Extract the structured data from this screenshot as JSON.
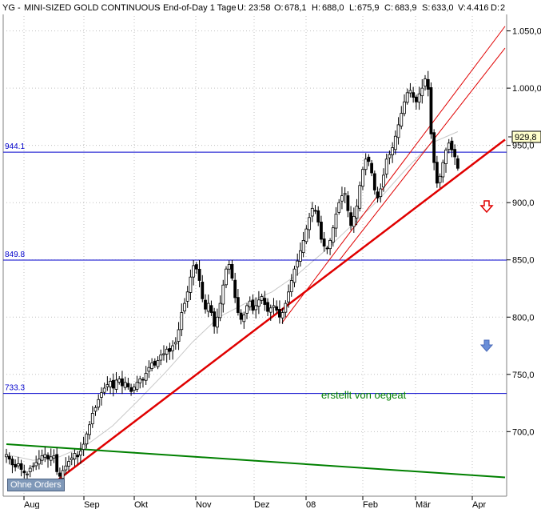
{
  "status_bar": {
    "symbol": "YG",
    "name": "MINI-SIZED GOLD CONTINUOUS",
    "period": "End-of-Day 1 Tage",
    "u_label": "U:",
    "u_value": "23:58",
    "o_label": "O:",
    "o_value": "678,1",
    "h_label": "H:",
    "h_value": "688,0",
    "l_label": "L:",
    "l_value": "675,9",
    "c_label": "C:",
    "c_value": "683,9",
    "s_label": "S:",
    "s_value": "633,0",
    "v_label": "V:",
    "v_value": "4.416",
    "d_label": "D:",
    "d_value": "2"
  },
  "last_price_label": "929,8",
  "annotation": "erstellt von oegeat",
  "ohne_orders_label": "Ohne Orders",
  "colors": {
    "background": "#ffffff",
    "candles": "#000000",
    "hlines": "#0000cc",
    "trend_red": "#e00000",
    "trend_green": "#008000",
    "ma": "#c8c8c8",
    "annotation": "#008000",
    "axis_bg": "#ffffff",
    "last_price_bg": "#ffffcc",
    "sell_arrow": "#e00000",
    "buy_arrow": "#6a8ed8"
  },
  "chart_data": {
    "type": "candlestick",
    "y_axis": {
      "ticks": [
        700,
        750,
        800,
        850,
        900,
        950,
        1000,
        1050
      ],
      "tick_labels": [
        "700,0",
        "750,0",
        "800,0",
        "850,0",
        "900,0",
        "950,0",
        "1.000,0",
        "1.050,0"
      ],
      "range": [
        645,
        1063
      ]
    },
    "x_axis": {
      "tick_labels": [
        "Aug",
        "Sep",
        "Okt",
        "Nov",
        "Dez",
        "08",
        "Feb",
        "Mär",
        "Apr"
      ],
      "range_index": [
        0,
        190
      ]
    },
    "horizontal_lines": [
      {
        "label": "944.1",
        "value": 944.1
      },
      {
        "label": "849.8",
        "value": 849.8
      },
      {
        "label": "733.3",
        "value": 733.3
      }
    ],
    "trendlines": [
      {
        "style": "thick-red",
        "x": [
          18,
          190
        ],
        "y": [
          655,
          955
        ]
      },
      {
        "style": "thin-red",
        "x": [
          105,
          190
        ],
        "y": [
          795,
          1054
        ]
      },
      {
        "style": "thin-red",
        "x": [
          127,
          190
        ],
        "y": [
          850,
          1035
        ]
      },
      {
        "style": "green",
        "x": [
          0,
          190
        ],
        "y": [
          689,
          660
        ]
      }
    ],
    "moving_average": {
      "x": [
        0,
        10,
        20,
        30,
        40,
        50,
        60,
        70,
        80,
        90,
        100,
        110,
        120,
        130,
        140,
        150,
        160,
        170
      ],
      "y": [
        680,
        675,
        678,
        688,
        705,
        728,
        752,
        778,
        800,
        812,
        822,
        838,
        858,
        880,
        902,
        928,
        952,
        962
      ]
    },
    "candles_close": [
      680,
      676,
      671,
      669,
      672,
      667,
      664,
      663,
      668,
      670,
      673,
      676,
      679,
      680,
      676,
      678,
      679,
      665,
      661,
      666,
      670,
      674,
      677,
      681,
      678,
      683,
      689,
      698,
      706,
      716,
      721,
      728,
      734,
      738,
      741,
      744,
      738,
      745,
      746,
      740,
      743,
      739,
      735,
      739,
      743,
      746,
      745,
      751,
      756,
      760,
      758,
      762,
      767,
      768,
      772,
      770,
      775,
      778,
      789,
      804,
      812,
      822,
      835,
      845,
      842,
      832,
      816,
      807,
      812,
      804,
      792,
      800,
      812,
      828,
      842,
      846,
      834,
      817,
      804,
      798,
      802,
      810,
      814,
      806,
      810,
      815,
      818,
      811,
      805,
      808,
      810,
      806,
      800,
      804,
      812,
      822,
      832,
      842,
      849,
      858,
      867,
      877,
      887,
      895,
      893,
      883,
      868,
      862,
      860,
      867,
      878,
      890,
      900,
      906,
      908,
      893,
      880,
      888,
      897,
      915,
      929,
      938,
      936,
      926,
      911,
      904,
      912,
      924,
      938,
      942,
      948,
      958,
      968,
      978,
      988,
      996,
      998,
      992,
      988,
      995,
      1000,
      1008,
      999,
      960,
      935,
      917,
      923,
      935,
      946,
      952,
      946,
      940,
      930
    ]
  }
}
